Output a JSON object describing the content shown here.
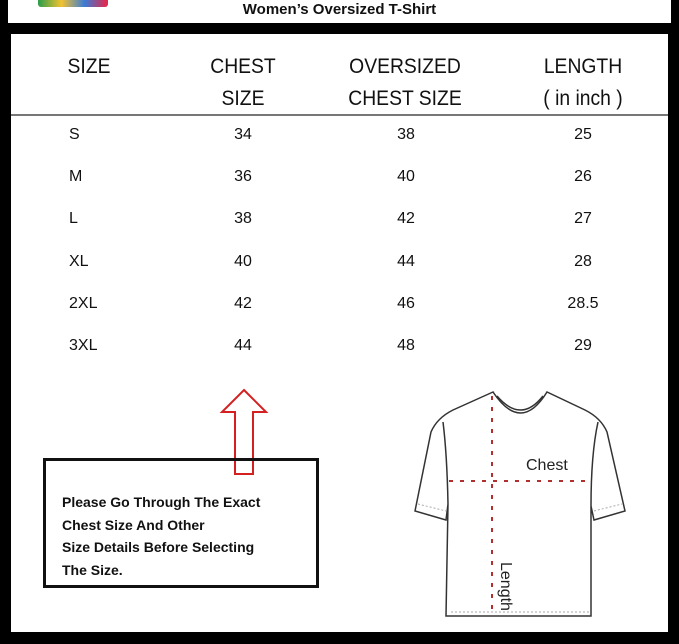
{
  "title": "Women’s Oversized T-Shirt",
  "table": {
    "headers": [
      [
        "SIZE"
      ],
      [
        "CHEST",
        "SIZE"
      ],
      [
        "OVERSIZED",
        "CHEST SIZE"
      ],
      [
        "LENGTH",
        "( in inch )"
      ]
    ],
    "rows": [
      [
        "S",
        "34",
        "38",
        "25"
      ],
      [
        "M",
        "36",
        "40",
        "26"
      ],
      [
        "L",
        "38",
        "42",
        "27"
      ],
      [
        "XL",
        "40",
        "44",
        "28"
      ],
      [
        "2XL",
        "42",
        "46",
        "28.5"
      ],
      [
        "3XL",
        "44",
        "48",
        "29"
      ]
    ]
  },
  "note": [
    "Please Go Through The Exact",
    "Chest Size And Other",
    "Size Details Before Selecting",
    "The Size."
  ],
  "diagram": {
    "chest_label": "Chest",
    "length_label": "Length"
  },
  "colors": {
    "arrow": "#d42020",
    "guide": "#b03030"
  }
}
